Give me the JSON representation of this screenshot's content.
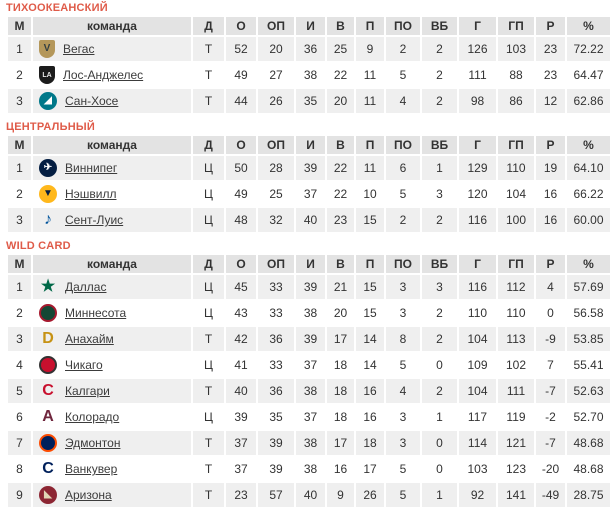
{
  "colors": {
    "section_title": "#df5b49",
    "header_bg": "#e3e3e3",
    "row_odd_bg": "#efefef",
    "row_even_bg": "#ffffff",
    "text": "#333333",
    "link": "#3c3c3c"
  },
  "columns": [
    "М",
    "команда",
    "Д",
    "О",
    "ОП",
    "И",
    "В",
    "П",
    "ПО",
    "ВБ",
    "Г",
    "ГП",
    "Р",
    "%"
  ],
  "sections": [
    {
      "title": "ТИХООКЕАНСКИЙ",
      "rows": [
        {
          "rank": "1",
          "team": "Вегас",
          "logo": {
            "name": "vegas-golden-knights-logo",
            "shape": "shield",
            "bg": "#b4975a",
            "fg": "#333f42",
            "glyph": "V"
          },
          "cells": [
            "Т",
            "52",
            "20",
            "36",
            "25",
            "9",
            "2",
            "2",
            "126",
            "103",
            "23",
            "72.22"
          ]
        },
        {
          "rank": "2",
          "team": "Лос-Анджелес",
          "logo": {
            "name": "los-angeles-kings-logo",
            "shape": "shield",
            "bg": "#1c1c1c",
            "fg": "#e8e8e8",
            "glyph": "LA"
          },
          "cells": [
            "Т",
            "49",
            "27",
            "38",
            "22",
            "11",
            "5",
            "2",
            "111",
            "88",
            "23",
            "64.47"
          ]
        },
        {
          "rank": "3",
          "team": "Сан-Хосе",
          "logo": {
            "name": "san-jose-sharks-logo",
            "shape": "circle",
            "bg": "#007889",
            "fg": "#ffffff",
            "glyph": "◢"
          },
          "cells": [
            "Т",
            "44",
            "26",
            "35",
            "20",
            "11",
            "4",
            "2",
            "98",
            "86",
            "12",
            "62.86"
          ]
        }
      ]
    },
    {
      "title": "ЦЕНТРАЛЬНЫЙ",
      "rows": [
        {
          "rank": "1",
          "team": "Виннипег",
          "logo": {
            "name": "winnipeg-jets-logo",
            "shape": "circle",
            "bg": "#041e42",
            "fg": "#ffffff",
            "glyph": "✈"
          },
          "cells": [
            "Ц",
            "50",
            "28",
            "39",
            "22",
            "11",
            "6",
            "1",
            "129",
            "110",
            "19",
            "64.10"
          ]
        },
        {
          "rank": "2",
          "team": "Нэшвилл",
          "logo": {
            "name": "nashville-predators-logo",
            "shape": "circle",
            "bg": "#ffb81c",
            "fg": "#041e42",
            "glyph": "▼"
          },
          "cells": [
            "Ц",
            "49",
            "25",
            "37",
            "22",
            "10",
            "5",
            "3",
            "120",
            "104",
            "16",
            "66.22"
          ]
        },
        {
          "rank": "3",
          "team": "Сент-Луис",
          "logo": {
            "name": "st-louis-blues-logo",
            "shape": "glyph",
            "fg": "#00539b",
            "glyph": "♪"
          },
          "cells": [
            "Ц",
            "48",
            "32",
            "40",
            "23",
            "15",
            "2",
            "2",
            "116",
            "100",
            "16",
            "60.00"
          ]
        }
      ]
    },
    {
      "title": "WILD CARD",
      "rows": [
        {
          "rank": "1",
          "team": "Даллас",
          "logo": {
            "name": "dallas-stars-logo",
            "shape": "glyph",
            "fg": "#006847",
            "glyph": "★"
          },
          "cells": [
            "Ц",
            "45",
            "33",
            "39",
            "21",
            "15",
            "3",
            "3",
            "116",
            "112",
            "4",
            "57.69"
          ]
        },
        {
          "rank": "2",
          "team": "Миннесота",
          "logo": {
            "name": "minnesota-wild-logo",
            "shape": "circle",
            "bg": "#154734",
            "border": "#a6192e",
            "fg": "#ffffff",
            "glyph": ""
          },
          "cells": [
            "Ц",
            "43",
            "33",
            "38",
            "20",
            "15",
            "3",
            "2",
            "110",
            "110",
            "0",
            "56.58"
          ]
        },
        {
          "rank": "3",
          "team": "Анахайм",
          "logo": {
            "name": "anaheim-ducks-logo",
            "shape": "glyph",
            "fg": "#c69214",
            "glyph": "D"
          },
          "cells": [
            "Т",
            "42",
            "36",
            "39",
            "17",
            "14",
            "8",
            "2",
            "104",
            "113",
            "-9",
            "53.85"
          ]
        },
        {
          "rank": "4",
          "team": "Чикаго",
          "logo": {
            "name": "chicago-blackhawks-logo",
            "shape": "circle",
            "bg": "#c8102e",
            "border": "#333333",
            "fg": "#ffffff",
            "glyph": ""
          },
          "cells": [
            "Ц",
            "41",
            "33",
            "37",
            "18",
            "14",
            "5",
            "0",
            "109",
            "102",
            "7",
            "55.41"
          ]
        },
        {
          "rank": "5",
          "team": "Калгари",
          "logo": {
            "name": "calgary-flames-logo",
            "shape": "glyph",
            "fg": "#c8102e",
            "glyph": "C"
          },
          "cells": [
            "Т",
            "40",
            "36",
            "38",
            "18",
            "16",
            "4",
            "2",
            "104",
            "111",
            "-7",
            "52.63"
          ]
        },
        {
          "rank": "6",
          "team": "Колорадо",
          "logo": {
            "name": "colorado-avalanche-logo",
            "shape": "glyph",
            "fg": "#6f263d",
            "glyph": "A"
          },
          "cells": [
            "Ц",
            "39",
            "35",
            "37",
            "18",
            "16",
            "3",
            "1",
            "117",
            "119",
            "-2",
            "52.70"
          ]
        },
        {
          "rank": "7",
          "team": "Эдмонтон",
          "logo": {
            "name": "edmonton-oilers-logo",
            "shape": "circle",
            "bg": "#00205b",
            "border": "#fc4c02",
            "fg": "#ffffff",
            "glyph": ""
          },
          "cells": [
            "Т",
            "37",
            "39",
            "38",
            "17",
            "18",
            "3",
            "0",
            "114",
            "121",
            "-7",
            "48.68"
          ]
        },
        {
          "rank": "8",
          "team": "Ванкувер",
          "logo": {
            "name": "vancouver-canucks-logo",
            "shape": "glyph",
            "fg": "#00205b",
            "glyph": "C"
          },
          "cells": [
            "Т",
            "37",
            "39",
            "38",
            "16",
            "17",
            "5",
            "0",
            "103",
            "123",
            "-20",
            "48.68"
          ]
        },
        {
          "rank": "9",
          "team": "Аризона",
          "logo": {
            "name": "arizona-coyotes-logo",
            "shape": "circle",
            "bg": "#8c2633",
            "fg": "#e2d6b5",
            "glyph": "◣"
          },
          "cells": [
            "Т",
            "23",
            "57",
            "40",
            "9",
            "26",
            "5",
            "1",
            "92",
            "141",
            "-49",
            "28.75"
          ]
        }
      ]
    }
  ]
}
